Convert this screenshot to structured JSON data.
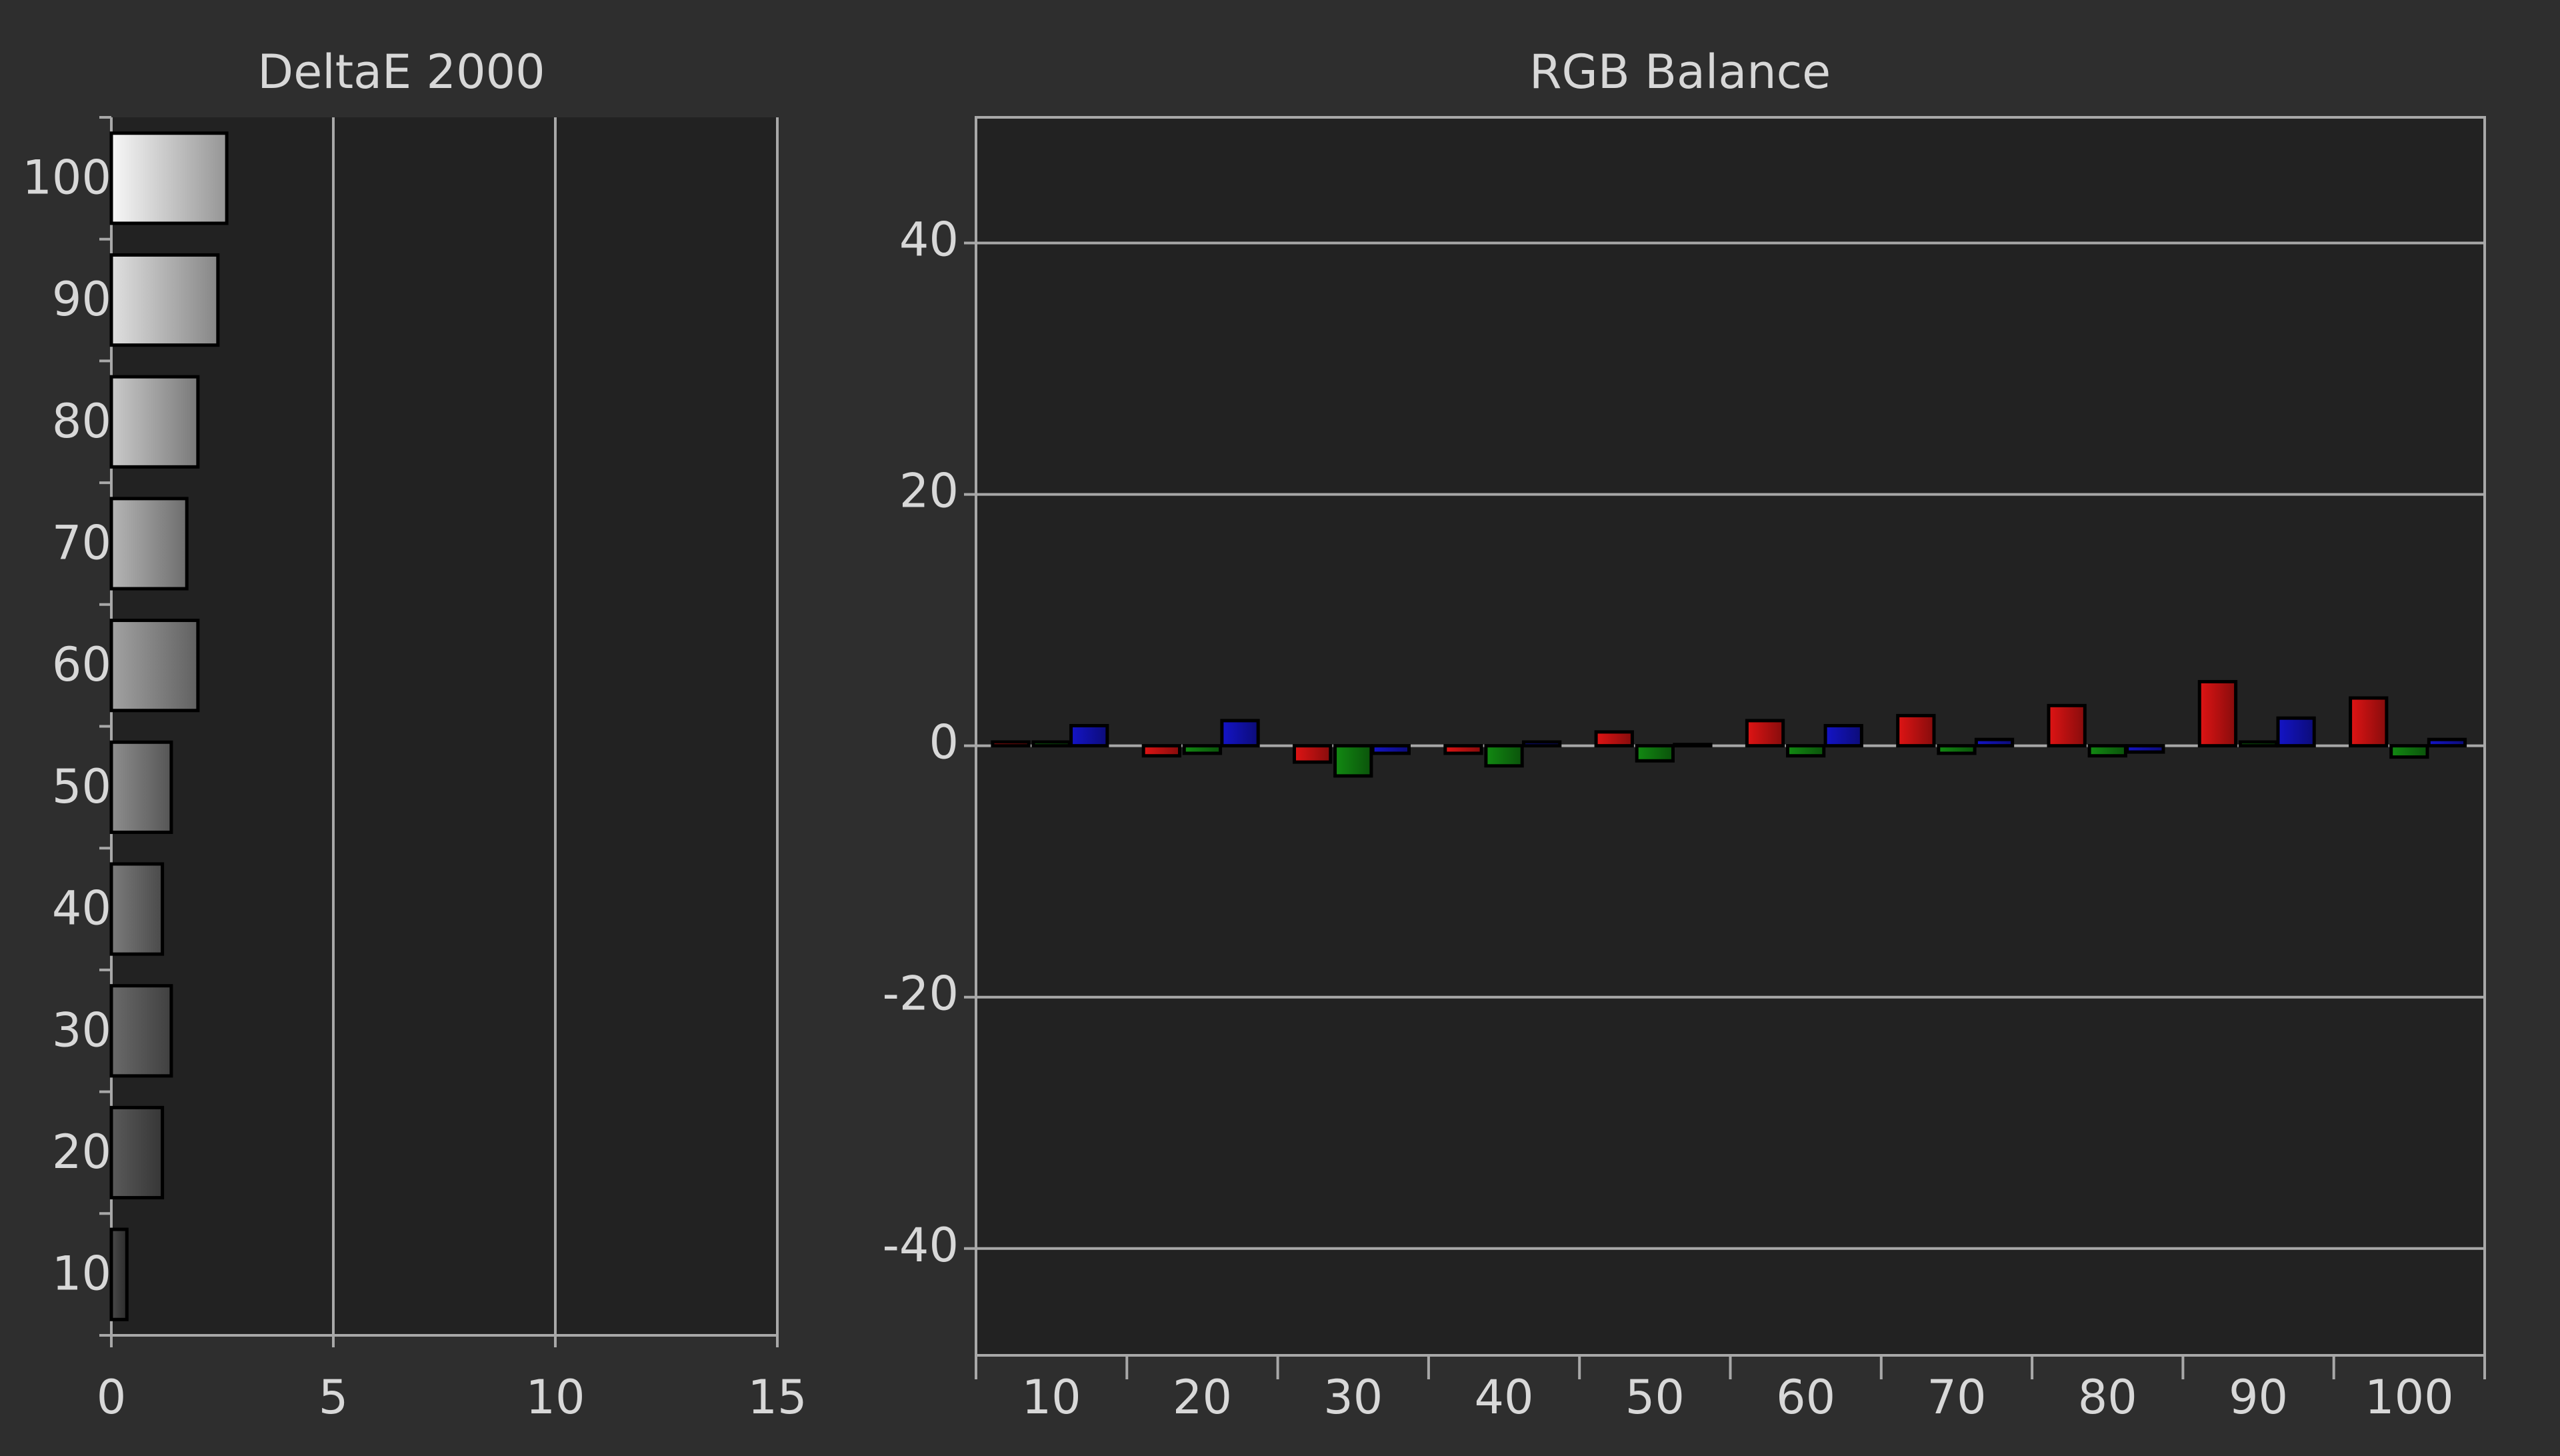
{
  "chart_data": [
    {
      "type": "hbar",
      "title": "DeltaE 2000",
      "categories": [
        "10",
        "20",
        "30",
        "40",
        "50",
        "60",
        "70",
        "80",
        "90",
        "100"
      ],
      "values": [
        0.35,
        1.15,
        1.35,
        1.15,
        1.35,
        1.95,
        1.7,
        1.95,
        2.4,
        2.6
      ],
      "colors": [
        "#4a4a4a",
        "#5a5a5a",
        "#6a6a6a",
        "#7c7c7c",
        "#8e8e8e",
        "#a2a2a2",
        "#b6b6b6",
        "#cacaca",
        "#e0e0e0",
        "#f8f8f8"
      ],
      "xlim": [
        0,
        15
      ],
      "xticks": [
        0,
        5,
        10,
        15
      ],
      "grid": true
    },
    {
      "type": "bar",
      "title": "RGB Balance",
      "categories": [
        "10",
        "20",
        "30",
        "40",
        "50",
        "60",
        "70",
        "80",
        "90",
        "100"
      ],
      "series": [
        {
          "name": "Red",
          "color": "#e01414",
          "values": [
            0.3,
            -0.8,
            -1.3,
            -0.6,
            1.1,
            2.0,
            2.4,
            3.2,
            5.1,
            3.8
          ]
        },
        {
          "name": "Green",
          "color": "#128a12",
          "values": [
            0.3,
            -0.6,
            -2.4,
            -1.6,
            -1.2,
            -0.8,
            -0.6,
            -0.8,
            0.3,
            -0.9
          ]
        },
        {
          "name": "Blue",
          "color": "#1414c8",
          "values": [
            1.6,
            2.0,
            -0.6,
            0.3,
            0.1,
            1.6,
            0.5,
            -0.5,
            2.2,
            0.5
          ]
        }
      ],
      "ylim": [
        -48.5,
        50
      ],
      "yticks": [
        -40,
        -20,
        0,
        20,
        40
      ],
      "grid": true
    }
  ]
}
